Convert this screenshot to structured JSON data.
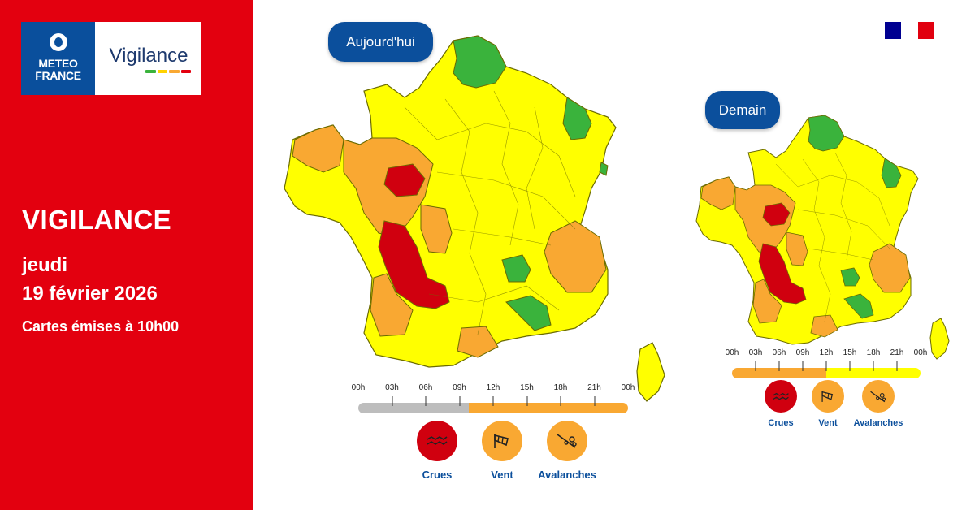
{
  "branding": {
    "meteo_line1": "METEO",
    "meteo_line2": "FRANCE",
    "vigilance_logo": "Vigilance"
  },
  "left": {
    "title": "VIGILANCE",
    "day": "jeudi",
    "date": "19 février 2026",
    "issued": "Cartes émises à 10h00"
  },
  "colors": {
    "panel_red": "#e3000f",
    "navy": "#0b4f9c",
    "green": "#3ab33c",
    "yellow": "#ffff00",
    "orange": "#f9a832",
    "red": "#d0000f",
    "grey": "#bdbdbd"
  },
  "today": {
    "label": "Aujourd'hui",
    "timeline_hours": [
      "00h",
      "03h",
      "06h",
      "09h",
      "12h",
      "15h",
      "18h",
      "21h",
      "00h"
    ],
    "timeline_segments": [
      {
        "level": "grey",
        "fraction": 0.41
      },
      {
        "level": "orange",
        "fraction": 0.59
      }
    ],
    "risks": [
      {
        "name": "Crues",
        "level": "red",
        "icon": "flood-icon"
      },
      {
        "name": "Vent",
        "level": "orange",
        "icon": "wind-sock-icon"
      },
      {
        "name": "Avalanches",
        "level": "orange",
        "icon": "avalanche-icon"
      }
    ]
  },
  "tomorrow": {
    "label": "Demain",
    "timeline_hours": [
      "00h",
      "03h",
      "06h",
      "09h",
      "12h",
      "15h",
      "18h",
      "21h",
      "00h"
    ],
    "timeline_segments": [
      {
        "level": "orange",
        "fraction": 0.5
      },
      {
        "level": "yellow",
        "fraction": 0.5
      }
    ],
    "risks": [
      {
        "name": "Crues",
        "level": "red",
        "icon": "flood-icon"
      },
      {
        "name": "Vent",
        "level": "orange",
        "icon": "wind-sock-icon"
      },
      {
        "name": "Avalanches",
        "level": "orange",
        "icon": "avalanche-icon"
      }
    ]
  }
}
